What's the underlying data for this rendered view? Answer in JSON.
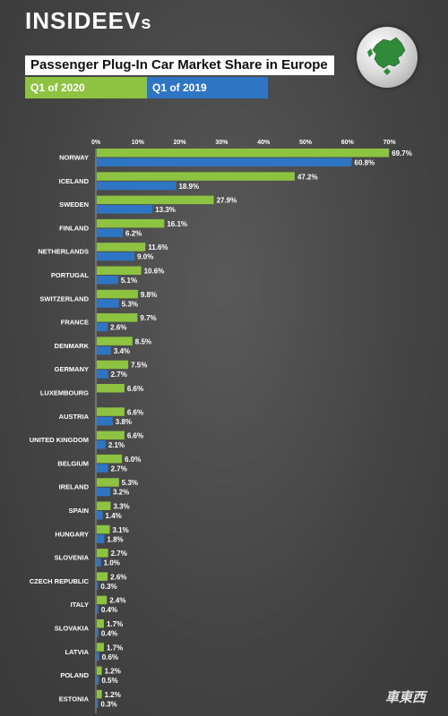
{
  "brand": {
    "logo_main": "INSIDEEV",
    "logo_small": "s"
  },
  "watermark": "車東西",
  "colors": {
    "q1_2020": "#8dc341",
    "q1_2019": "#2e75c4",
    "background": "#434343"
  },
  "chart_data": {
    "type": "bar",
    "orientation": "horizontal",
    "title": "Passenger Plug-In Car Market Share in Europe",
    "legend": [
      "Q1 of 2020",
      "Q1 of 2019"
    ],
    "legend_placement": "top",
    "xlim": [
      0,
      70
    ],
    "x_ticks": [
      "0%",
      "10%",
      "20%",
      "30%",
      "40%",
      "50%",
      "60%",
      "70%"
    ],
    "grid": false,
    "categories": [
      "NORWAY",
      "ICELAND",
      "SWEDEN",
      "FINLAND",
      "NETHERLANDS",
      "PORTUGAL",
      "SWITZERLAND",
      "FRANCE",
      "DENMARK",
      "GERMANY",
      "LUXEMBOURG",
      "AUSTRIA",
      "UNITED KINGDOM",
      "BELGIUM",
      "IRELAND",
      "SPAIN",
      "HUNGARY",
      "SLOVENIA",
      "CZECH REPUBLIC",
      "ITALY",
      "SLOVAKIA",
      "LATVIA",
      "POLAND",
      "ESTONIA"
    ],
    "series": [
      {
        "name": "Q1 of 2020",
        "values": [
          69.7,
          47.2,
          27.9,
          16.1,
          11.6,
          10.6,
          9.8,
          9.7,
          8.5,
          7.5,
          6.6,
          6.6,
          6.6,
          6.0,
          5.3,
          3.3,
          3.1,
          2.7,
          2.6,
          2.4,
          1.7,
          1.7,
          1.2,
          1.2
        ],
        "labels": [
          "69.7%",
          "47.2%",
          "27.9%",
          "16.1%",
          "11.6%",
          "10.6%",
          "9.8%",
          "9.7%",
          "8.5%",
          "7.5%",
          "6.6%",
          "6.6%",
          "6.6%",
          "6.0%",
          "5.3%",
          "3.3%",
          "3.1%",
          "2.7%",
          "2.6%",
          "2.4%",
          "1.7%",
          "1.7%",
          "1.2%",
          "1.2%"
        ]
      },
      {
        "name": "Q1 of 2019",
        "values": [
          60.8,
          18.9,
          13.3,
          6.2,
          9.0,
          5.1,
          5.3,
          2.6,
          3.4,
          2.7,
          null,
          3.8,
          2.1,
          2.7,
          3.2,
          1.4,
          1.8,
          1.0,
          0.3,
          0.4,
          0.4,
          0.6,
          0.5,
          0.3
        ],
        "labels": [
          "60.8%",
          "18.9%",
          "13.3%",
          "6.2%",
          "9.0%",
          "5.1%",
          "5.3%",
          "2.6%",
          "3.4%",
          "2.7%",
          null,
          "3.8%",
          "2.1%",
          "2.7%",
          "3.2%",
          "1.4%",
          "1.8%",
          "1.0%",
          "0.3%",
          "0.4%",
          "0.4%",
          "0.6%",
          "0.5%",
          "0.3%"
        ]
      }
    ]
  }
}
